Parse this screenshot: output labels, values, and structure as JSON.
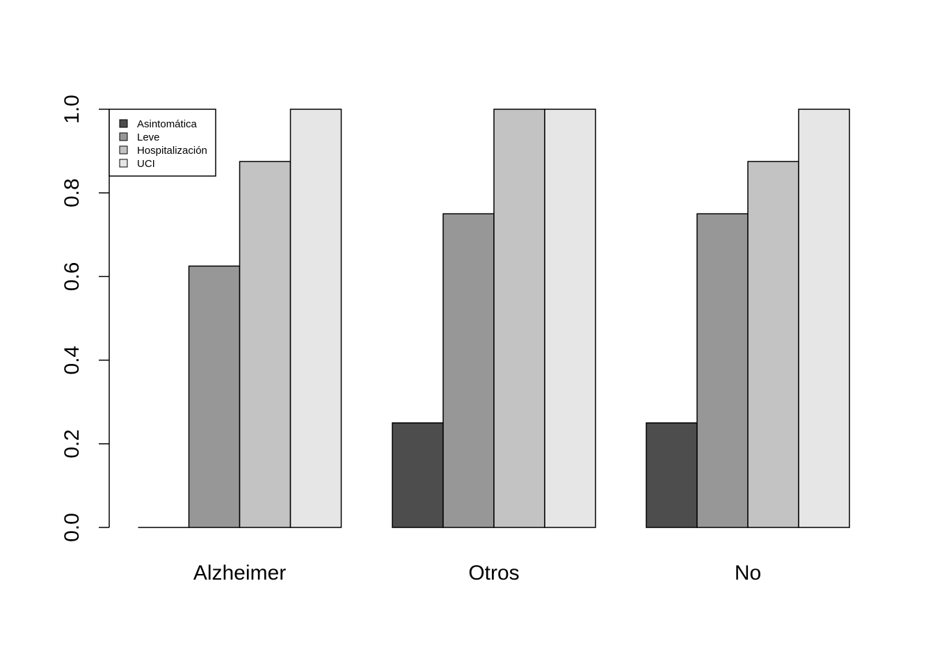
{
  "chart_data": {
    "type": "bar",
    "title": "",
    "xlabel": "",
    "ylabel": "",
    "ylim": [
      0,
      1
    ],
    "yticks": [
      "0.0",
      "0.2",
      "0.4",
      "0.6",
      "0.8",
      "1.0"
    ],
    "categories": [
      "Alzheimer",
      "Otros",
      "No"
    ],
    "series": [
      {
        "name": "Asintomática",
        "color": "#4d4d4d",
        "values": [
          0.0,
          0.25,
          0.25
        ]
      },
      {
        "name": "Leve",
        "color": "#979797",
        "values": [
          0.625,
          0.75,
          0.75
        ]
      },
      {
        "name": "Hospitalización",
        "color": "#c3c3c3",
        "values": [
          0.875,
          1.0,
          0.875
        ]
      },
      {
        "name": "UCI",
        "color": "#e6e6e6",
        "values": [
          1.0,
          1.0,
          1.0
        ]
      }
    ],
    "grid": false,
    "legend_position": "top-left"
  }
}
